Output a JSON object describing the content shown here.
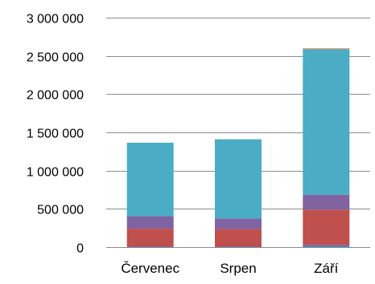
{
  "chart_data": {
    "type": "bar",
    "stacked": true,
    "categories": [
      "Červenec",
      "Srpen",
      "Září"
    ],
    "series": [
      {
        "color": "#4f81bd",
        "values": [
          5000,
          5000,
          25000
        ]
      },
      {
        "color": "#c0504d",
        "values": [
          235000,
          230000,
          465000
        ]
      },
      {
        "color": "#8064a2",
        "values": [
          165000,
          140000,
          195000
        ]
      },
      {
        "color": "#4bacc6",
        "values": [
          960000,
          1035000,
          1905000
        ]
      },
      {
        "color": "#f79646",
        "values": [
          0,
          0,
          10000
        ]
      }
    ],
    "y_ticks": [
      "0",
      "500 000",
      "1 000 000",
      "1 500 000",
      "2 000 000",
      "2 500 000",
      "3 000 000"
    ],
    "ylim": [
      0,
      3000000
    ],
    "y_tick_step": 500000,
    "grid": true,
    "legend": "none",
    "gridline_color": "#8c8c8c",
    "text_color": "#000000"
  }
}
